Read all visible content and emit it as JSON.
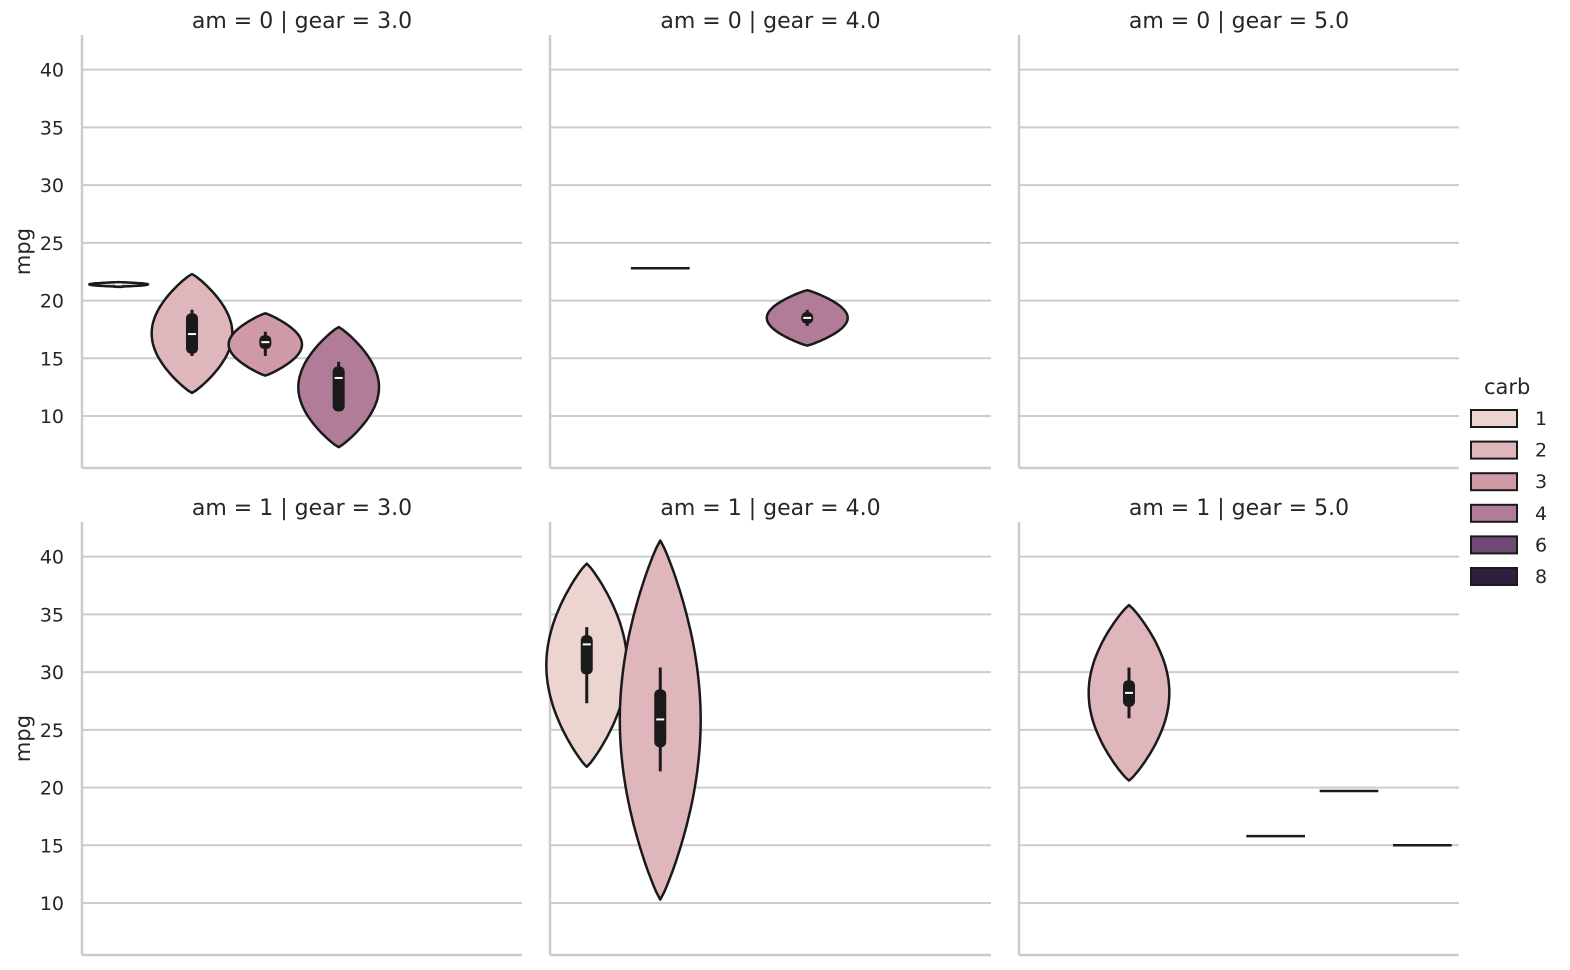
{
  "chart_data": {
    "type": "violin",
    "ylabel": "mpg",
    "ylim": [
      5.5,
      43
    ],
    "yticks": [
      10,
      15,
      20,
      25,
      30,
      35,
      40
    ],
    "grid": "horizontal",
    "legend": {
      "title": "carb",
      "placement": "right",
      "entries": [
        {
          "label": "1",
          "color": "#ecd5d1"
        },
        {
          "label": "2",
          "color": "#dfb6bc"
        },
        {
          "label": "3",
          "color": "#cf99a6"
        },
        {
          "label": "4",
          "color": "#b07c97"
        },
        {
          "label": "6",
          "color": "#6e4a75"
        },
        {
          "label": "8",
          "color": "#2e1f3d"
        }
      ]
    },
    "hue_order": [
      "1",
      "2",
      "3",
      "4",
      "6",
      "8"
    ],
    "facets": [
      {
        "title": "am = 0 | gear = 3.0",
        "violins": [
          {
            "carb": "1",
            "kde_min": 21.2,
            "kde_max": 21.6,
            "half_width": 0.4,
            "whisker": [
              21.35,
              21.45
            ],
            "q1": 21.38,
            "median": 21.4,
            "q3": 21.42
          },
          {
            "carb": "2",
            "kde_min": 12.0,
            "kde_max": 22.3,
            "half_width": 0.55,
            "whisker": [
              15.2,
              19.2
            ],
            "q1": 15.4,
            "median": 17.1,
            "q3": 18.9
          },
          {
            "carb": "3",
            "kde_min": 13.5,
            "kde_max": 18.9,
            "half_width": 0.5,
            "whisker": [
              15.2,
              17.3
            ],
            "q1": 15.8,
            "median": 16.4,
            "q3": 17.0
          },
          {
            "carb": "4",
            "kde_min": 7.3,
            "kde_max": 17.7,
            "half_width": 0.55,
            "whisker": [
              10.4,
              14.7
            ],
            "q1": 10.4,
            "median": 13.3,
            "q3": 14.3
          }
        ]
      },
      {
        "title": "am = 0 | gear = 4.0",
        "violins": [
          {
            "carb": "2",
            "single_value": 22.8
          },
          {
            "carb": "4",
            "kde_min": 16.1,
            "kde_max": 20.9,
            "half_width": 0.55,
            "whisker": [
              17.8,
              19.2
            ],
            "q1": 18.0,
            "median": 18.5,
            "q3": 19.0
          }
        ]
      },
      {
        "title": "am = 0 | gear = 5.0",
        "violins": []
      },
      {
        "title": "am = 1 | gear = 3.0",
        "violins": []
      },
      {
        "title": "am = 1 | gear = 4.0",
        "violins": [
          {
            "carb": "1",
            "kde_min": 21.8,
            "kde_max": 39.4,
            "half_width": 0.55,
            "whisker": [
              27.3,
              33.9
            ],
            "q1": 29.8,
            "median": 32.4,
            "q3": 33.2
          },
          {
            "carb": "2",
            "kde_min": 10.3,
            "kde_max": 41.4,
            "half_width": 0.55,
            "whisker": [
              21.4,
              30.4
            ],
            "q1": 23.5,
            "median": 25.9,
            "q3": 28.5
          }
        ]
      },
      {
        "title": "am = 1 | gear = 5.0",
        "violins": [
          {
            "carb": "2",
            "kde_min": 20.6,
            "kde_max": 35.8,
            "half_width": 0.55,
            "whisker": [
              26.0,
              30.4
            ],
            "q1": 27.0,
            "median": 28.2,
            "q3": 29.3
          },
          {
            "carb": "4",
            "single_value": 15.8
          },
          {
            "carb": "6",
            "single_value": 19.7
          },
          {
            "carb": "8",
            "single_value": 15.0
          }
        ]
      }
    ]
  }
}
